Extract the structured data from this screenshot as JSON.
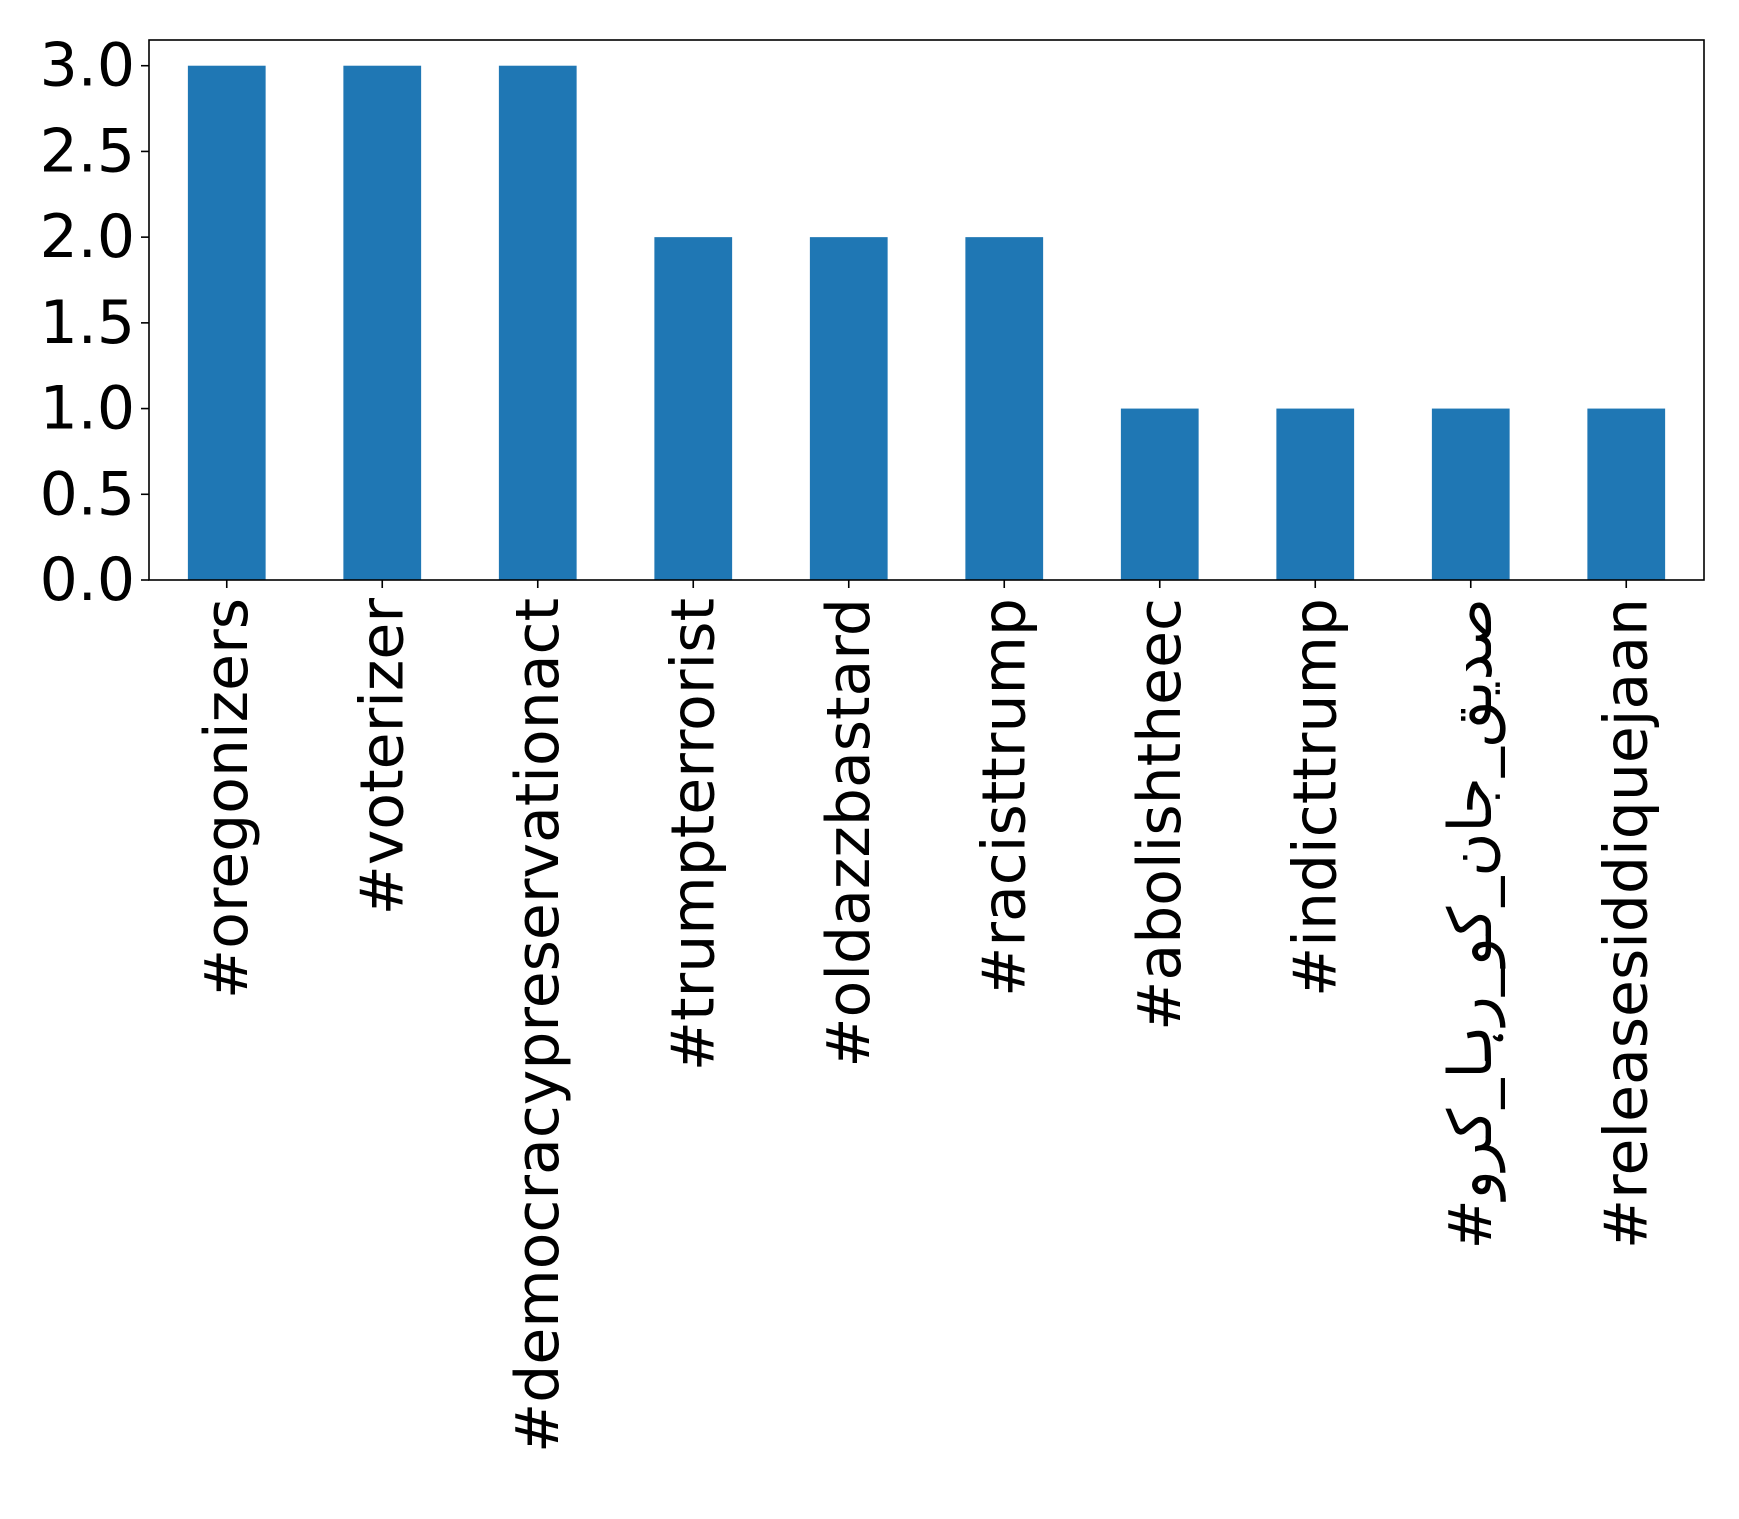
{
  "chart_data": {
    "type": "bar",
    "categories": [
      "#oregonizers",
      "#voterizer",
      "#democracypreservationact",
      "#trumpterrorist",
      "#oldazzbastard",
      "#racisttrump",
      "#abolishtheec",
      "#indicttrump",
      "#صدیق_جان_کو_رہا_کرو",
      "#releasesiddiquejaan"
    ],
    "values": [
      3,
      3,
      3,
      2,
      2,
      2,
      1,
      1,
      1,
      1
    ],
    "yticks": [
      "0.0",
      "0.5",
      "1.0",
      "1.5",
      "2.0",
      "2.5",
      "3.0"
    ],
    "ylim": [
      0,
      3.15
    ],
    "grid": false,
    "bar_color": "#1f77b4"
  }
}
